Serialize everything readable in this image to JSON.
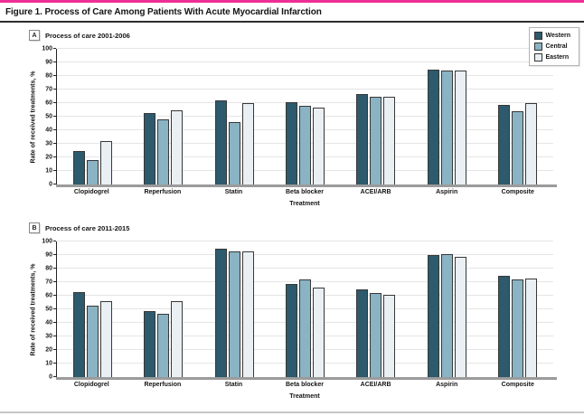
{
  "figure": {
    "title": "Figure 1. Process of Care Among Patients With Acute Myocardial Infarction"
  },
  "colors": {
    "accent_top_bar": "#ee2f96",
    "western": "#2d5a6c",
    "central": "#8ab3c3",
    "eastern": "#e9eff3",
    "bar_border": "#383838",
    "gridline": "#e5e5e5",
    "baseline": "#9b9b9b"
  },
  "legend": {
    "position": "top-right",
    "items": [
      {
        "label": "Western",
        "color": "#2d5a6c"
      },
      {
        "label": "Central",
        "color": "#8ab3c3"
      },
      {
        "label": "Eastern",
        "color": "#e9eff3"
      }
    ]
  },
  "chart_data": [
    {
      "type": "bar",
      "panel_label": "A",
      "title": "Process of care 2001-2006",
      "categories": [
        "Clopidogrel",
        "Reperfusion",
        "Statin",
        "Beta blocker",
        "ACEI/ARB",
        "Aspirin",
        "Composite"
      ],
      "series": [
        {
          "name": "Western",
          "color": "#2d5a6c",
          "values": [
            25,
            53,
            62,
            61,
            67,
            85,
            59
          ]
        },
        {
          "name": "Central",
          "color": "#8ab3c3",
          "values": [
            18,
            48,
            46,
            58,
            65,
            84,
            54
          ]
        },
        {
          "name": "Eastern",
          "color": "#e9eff3",
          "values": [
            32,
            55,
            60,
            57,
            65,
            84,
            60
          ]
        }
      ],
      "xlabel": "Treatment",
      "ylabel": "Rate of received treatments, %",
      "ylim": [
        0,
        100
      ],
      "ytick_step": 10,
      "grid": true,
      "legend_shown": true
    },
    {
      "type": "bar",
      "panel_label": "B",
      "title": "Process of care 2011-2015",
      "categories": [
        "Clopidogrel",
        "Reperfusion",
        "Statin",
        "Beta blocker",
        "ACEI/ARB",
        "Aspirin",
        "Composite"
      ],
      "series": [
        {
          "name": "Western",
          "color": "#2d5a6c",
          "values": [
            63,
            49,
            95,
            69,
            65,
            90,
            75
          ]
        },
        {
          "name": "Central",
          "color": "#8ab3c3",
          "values": [
            53,
            47,
            93,
            72,
            62,
            91,
            72
          ]
        },
        {
          "name": "Eastern",
          "color": "#e9eff3",
          "values": [
            56,
            56,
            93,
            66,
            61,
            89,
            73
          ]
        }
      ],
      "xlabel": "Treatment",
      "ylabel": "Rate of received treatments, %",
      "ylim": [
        0,
        100
      ],
      "ytick_step": 10,
      "grid": true,
      "legend_shown": false
    }
  ]
}
